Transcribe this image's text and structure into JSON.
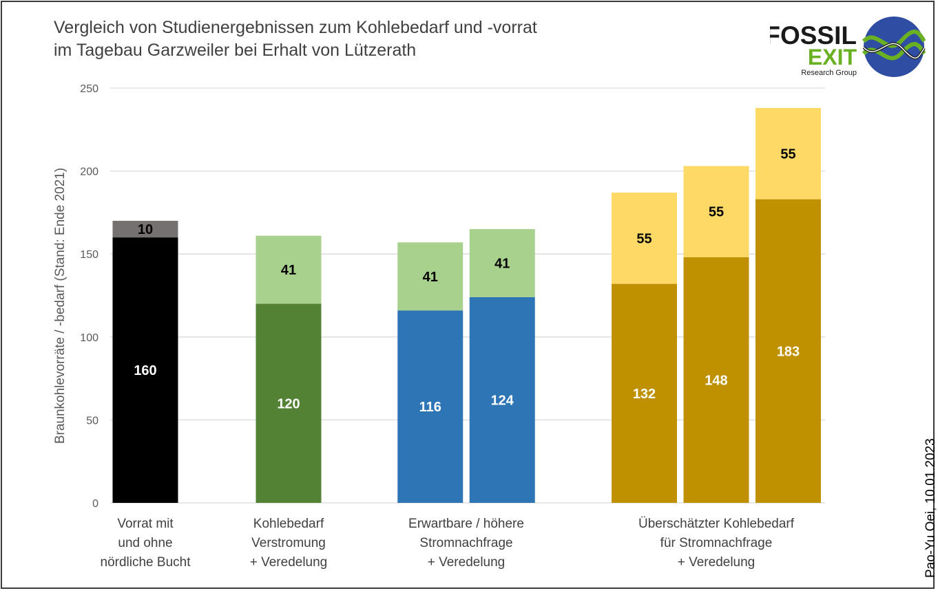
{
  "title_lines": [
    "Vergleich von Studienergebnissen  zum Kohlebedarf  und -vorrat",
    "im Tagebau Garzweiler bei Erhalt von Lützerath"
  ],
  "credit": "Pao-Yu Oei, 10.01.2023",
  "logo": {
    "line1": "FOSSIL",
    "line2": "EXIT",
    "line3": "Research Group",
    "colors": {
      "text": "#1a1a1a",
      "green": "#6ab023",
      "blue": "#2f4ea3"
    }
  },
  "chart_data": {
    "type": "bar",
    "stacked": true,
    "ylabel": "Braunkohlevorräte / -bedarf (Stand: Ende 2021)",
    "ylim": [
      0,
      250
    ],
    "yticks": [
      0,
      50,
      100,
      150,
      200,
      250
    ],
    "grid": true,
    "legend": "none",
    "groups": [
      {
        "label": [
          "Vorrat mit",
          "und ohne",
          "nördliche Bucht"
        ],
        "bars": [
          {
            "segments": [
              {
                "value": 160,
                "color": "#000000",
                "label_color": "#ffffff"
              },
              {
                "value": 10,
                "color": "#767171",
                "label_color": "#000000"
              }
            ]
          }
        ]
      },
      {
        "label": [
          "Kohlebedarf",
          "Verstromung",
          "+ Veredelung"
        ],
        "bars": [
          {
            "segments": [
              {
                "value": 120,
                "color": "#548235",
                "label_color": "#ffffff"
              },
              {
                "value": 41,
                "color": "#a9d18e",
                "label_color": "#000000"
              }
            ]
          }
        ]
      },
      {
        "label": [
          "Erwartbare / höhere",
          "Stromnachfrage",
          "+ Veredelung"
        ],
        "bars": [
          {
            "segments": [
              {
                "value": 116,
                "color": "#2e75b6",
                "label_color": "#ffffff"
              },
              {
                "value": 41,
                "color": "#a9d18e",
                "label_color": "#000000"
              }
            ]
          },
          {
            "segments": [
              {
                "value": 124,
                "color": "#2e75b6",
                "label_color": "#ffffff"
              },
              {
                "value": 41,
                "color": "#a9d18e",
                "label_color": "#000000"
              }
            ]
          }
        ]
      },
      {
        "label": [
          "Überschätzter Kohlebedarf",
          "für Stromnachfrage",
          "+ Veredelung"
        ],
        "bars": [
          {
            "segments": [
              {
                "value": 132,
                "color": "#bf9000",
                "label_color": "#ffffff"
              },
              {
                "value": 55,
                "color": "#ffd966",
                "label_color": "#000000"
              }
            ]
          },
          {
            "segments": [
              {
                "value": 148,
                "color": "#bf9000",
                "label_color": "#ffffff"
              },
              {
                "value": 55,
                "color": "#ffd966",
                "label_color": "#000000"
              }
            ]
          },
          {
            "segments": [
              {
                "value": 183,
                "color": "#bf9000",
                "label_color": "#ffffff"
              },
              {
                "value": 55,
                "color": "#ffd966",
                "label_color": "#000000"
              }
            ]
          }
        ]
      }
    ]
  }
}
